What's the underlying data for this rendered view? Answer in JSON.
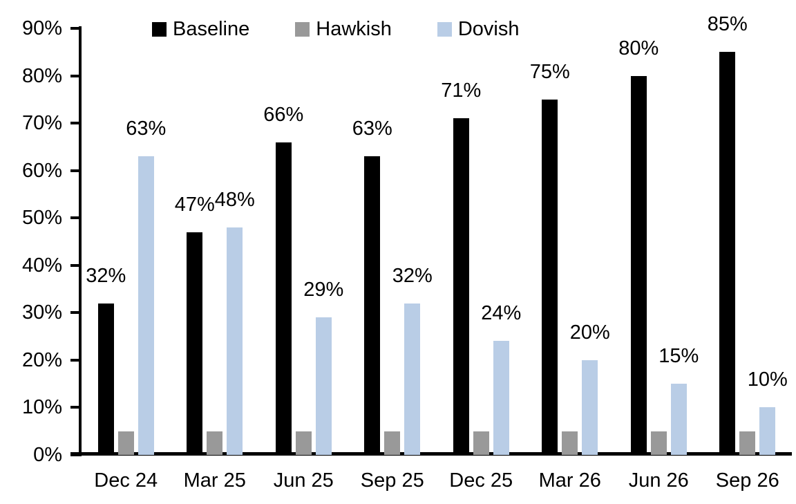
{
  "chart_data": {
    "type": "bar",
    "title": "",
    "xlabel": "",
    "ylabel": "",
    "categories": [
      "Dec 24",
      "Mar 25",
      "Jun 25",
      "Sep 25",
      "Dec 25",
      "Mar 26",
      "Jun 26",
      "Sep 26"
    ],
    "series": [
      {
        "name": "Baseline",
        "color": "#000000",
        "values": [
          32,
          47,
          66,
          63,
          71,
          75,
          80,
          85
        ],
        "data_labels": true
      },
      {
        "name": "Hawkish",
        "color": "#999999",
        "values": [
          5,
          5,
          5,
          5,
          5,
          5,
          5,
          5
        ],
        "data_labels": false
      },
      {
        "name": "Dovish",
        "color": "#B9CDE6",
        "values": [
          63,
          48,
          29,
          32,
          24,
          20,
          15,
          10
        ],
        "data_labels": true
      }
    ],
    "label_format": "{value}%",
    "ylim": [
      0,
      90
    ],
    "ytick_step": 10,
    "ytick_labels": [
      "0%",
      "10%",
      "20%",
      "30%",
      "40%",
      "50%",
      "60%",
      "70%",
      "80%",
      "90%"
    ],
    "legend_position": "top",
    "grid": false,
    "axis_color": "#000000",
    "background_color": "#ffffff"
  }
}
